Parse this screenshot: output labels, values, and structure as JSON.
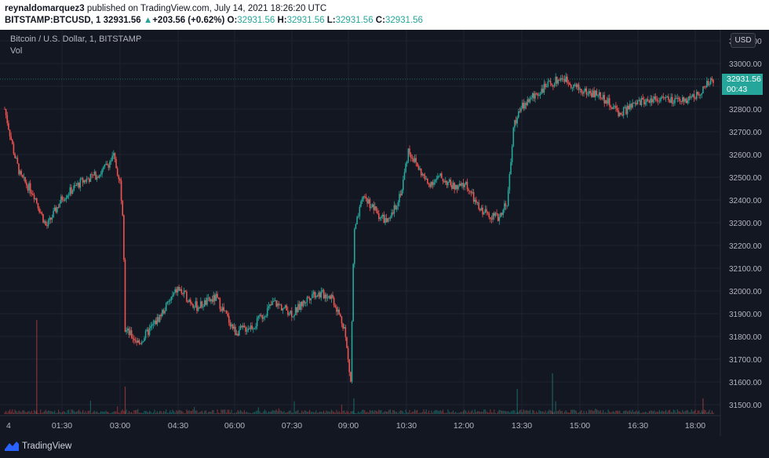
{
  "header": {
    "publisher": "reynaldomarquez3",
    "published_text": " published on TradingView.com, July 14, 2021 18:26:20 UTC",
    "symbol": "BITSTAMP:BTCUSD, 1",
    "price": "32931.56",
    "change_arrow": "▲",
    "change": "+203.56 (+0.62%)",
    "o_label": "O:",
    "o_value": "32931.56",
    "h_label": "H:",
    "h_value": "32931.56",
    "l_label": "L:",
    "l_value": "32931.56",
    "c_label": "C:",
    "c_value": "32931.56"
  },
  "legend": {
    "title": "Bitcoin / U.S. Dollar, 1, BITSTAMP",
    "volume": "Vol"
  },
  "currency": "USD",
  "current": {
    "price": "32931.56",
    "countdown": "00:43"
  },
  "footer": {
    "brand": "TradingView"
  },
  "colors": {
    "background": "#131722",
    "up": "#26a69a",
    "down": "#ef5350",
    "label": "#26a69a"
  },
  "chart_data": {
    "type": "candlestick",
    "title": "Bitcoin / U.S. Dollar, 1, BITSTAMP",
    "currency": "USD",
    "ylim": [
      31450,
      33130
    ],
    "y_ticks": [
      "33100.00",
      "33000.00",
      "32900.00",
      "32800.00",
      "32700.00",
      "32600.00",
      "32500.00",
      "32400.00",
      "32300.00",
      "32200.00",
      "32100.00",
      "32000.00",
      "31900.00",
      "31800.00",
      "31700.00",
      "31600.00",
      "31500.00"
    ],
    "x_ticks": [
      "4",
      "01:30",
      "03:00",
      "04:30",
      "06:00",
      "07:30",
      "09:00",
      "10:30",
      "12:00",
      "13:30",
      "15:00",
      "16:30",
      "18:00"
    ],
    "time_range": [
      "00:00",
      "18:26"
    ],
    "last_price": 32931.56,
    "price_path": [
      {
        "t": "00:00",
        "price": 32800
      },
      {
        "t": "00:15",
        "price": 32600
      },
      {
        "t": "00:25",
        "price": 32500
      },
      {
        "t": "00:45",
        "price": 32430
      },
      {
        "t": "01:05",
        "price": 32280
      },
      {
        "t": "01:30",
        "price": 32410
      },
      {
        "t": "02:00",
        "price": 32480
      },
      {
        "t": "02:30",
        "price": 32520
      },
      {
        "t": "02:50",
        "price": 32590
      },
      {
        "t": "03:00",
        "price": 32480
      },
      {
        "t": "03:05",
        "price": 32320
      },
      {
        "t": "03:08",
        "price": 31830
      },
      {
        "t": "03:30",
        "price": 31770
      },
      {
        "t": "04:00",
        "price": 31880
      },
      {
        "t": "04:30",
        "price": 32010
      },
      {
        "t": "05:00",
        "price": 31930
      },
      {
        "t": "05:30",
        "price": 31970
      },
      {
        "t": "06:00",
        "price": 31820
      },
      {
        "t": "06:30",
        "price": 31850
      },
      {
        "t": "07:00",
        "price": 31950
      },
      {
        "t": "07:30",
        "price": 31900
      },
      {
        "t": "08:00",
        "price": 31990
      },
      {
        "t": "08:30",
        "price": 31980
      },
      {
        "t": "08:50",
        "price": 31840
      },
      {
        "t": "09:00",
        "price": 31600
      },
      {
        "t": "09:05",
        "price": 32250
      },
      {
        "t": "09:20",
        "price": 32420
      },
      {
        "t": "09:45",
        "price": 32330
      },
      {
        "t": "10:00",
        "price": 32300
      },
      {
        "t": "10:20",
        "price": 32450
      },
      {
        "t": "10:30",
        "price": 32620
      },
      {
        "t": "11:00",
        "price": 32470
      },
      {
        "t": "11:20",
        "price": 32500
      },
      {
        "t": "11:45",
        "price": 32450
      },
      {
        "t": "12:00",
        "price": 32470
      },
      {
        "t": "12:20",
        "price": 32360
      },
      {
        "t": "12:50",
        "price": 32320
      },
      {
        "t": "13:05",
        "price": 32400
      },
      {
        "t": "13:15",
        "price": 32740
      },
      {
        "t": "13:30",
        "price": 32820
      },
      {
        "t": "14:00",
        "price": 32890
      },
      {
        "t": "14:30",
        "price": 32940
      },
      {
        "t": "15:00",
        "price": 32880
      },
      {
        "t": "15:30",
        "price": 32860
      },
      {
        "t": "16:00",
        "price": 32780
      },
      {
        "t": "16:30",
        "price": 32830
      },
      {
        "t": "17:00",
        "price": 32850
      },
      {
        "t": "17:30",
        "price": 32830
      },
      {
        "t": "18:00",
        "price": 32860
      },
      {
        "t": "18:26",
        "price": 32931.56
      }
    ]
  }
}
